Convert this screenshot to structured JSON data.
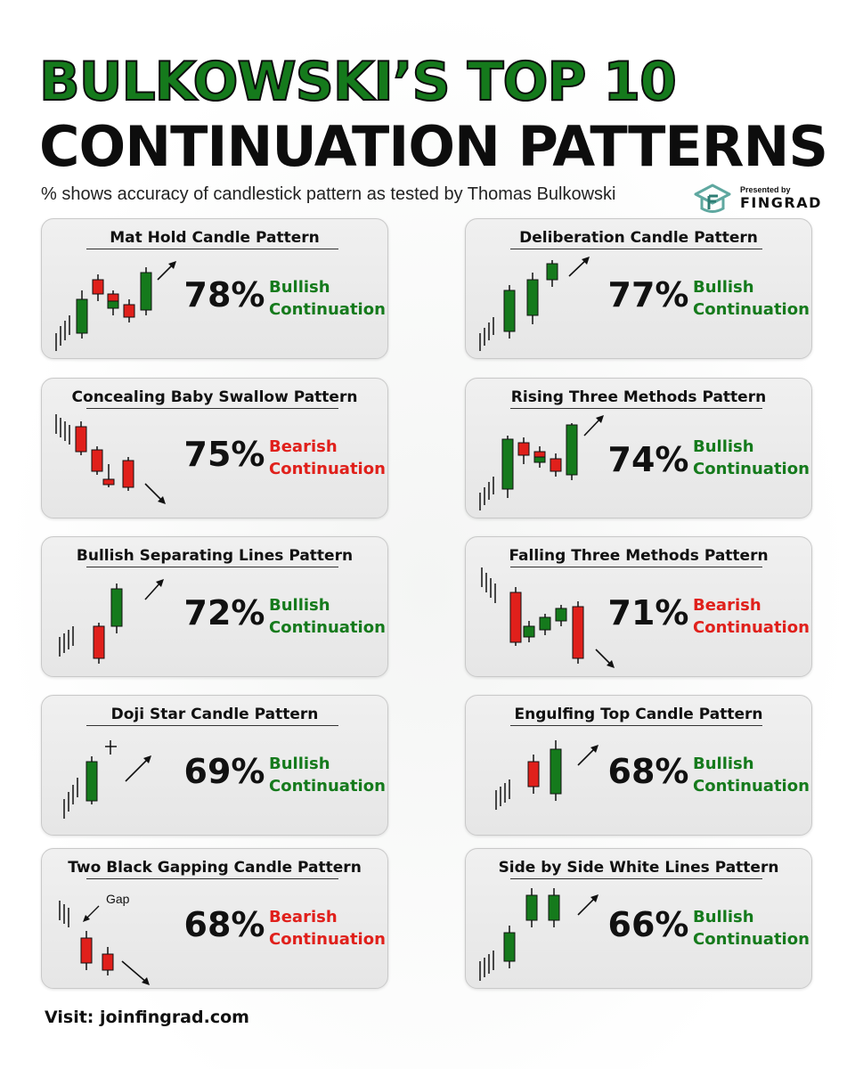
{
  "header": {
    "title_line1": "BULKOWSKI’S TOP 10",
    "title_line2": "CONTINUATION PATTERNS",
    "subtitle": "% shows accuracy of candlestick pattern as tested by Thomas Bulkowski",
    "brand_small": "Presented by",
    "brand_name": "FINGRAD",
    "colors": {
      "green": "#157a1c",
      "red": "#e0201b",
      "dark": "#0d0d0d"
    }
  },
  "cards": [
    {
      "title": "Mat Hold Candle Pattern",
      "percent": "78%",
      "label_line1": "Bullish",
      "label_line2": "Continuation",
      "sentiment": "bullish"
    },
    {
      "title": "Deliberation Candle Pattern",
      "percent": "77%",
      "label_line1": "Bullish",
      "label_line2": "Continuation",
      "sentiment": "bullish"
    },
    {
      "title": "Concealing Baby Swallow Pattern",
      "percent": "75%",
      "label_line1": "Bearish",
      "label_line2": "Continuation",
      "sentiment": "bearish"
    },
    {
      "title": "Rising Three Methods Pattern",
      "percent": "74%",
      "label_line1": "Bullish",
      "label_line2": "Continuation",
      "sentiment": "bullish"
    },
    {
      "title": "Bullish Separating Lines Pattern",
      "percent": "72%",
      "label_line1": "Bullish",
      "label_line2": "Continuation",
      "sentiment": "bullish"
    },
    {
      "title": "Falling Three Methods Pattern",
      "percent": "71%",
      "label_line1": "Bearish",
      "label_line2": "Continuation",
      "sentiment": "bearish"
    },
    {
      "title": "Doji Star Candle Pattern",
      "percent": "69%",
      "label_line1": "Bullish",
      "label_line2": "Continuation",
      "sentiment": "bullish"
    },
    {
      "title": "Engulfing Top Candle Pattern",
      "percent": "68%",
      "label_line1": "Bullish",
      "label_line2": "Continuation",
      "sentiment": "bullish"
    },
    {
      "title": "Two Black Gapping Candle Pattern",
      "percent": "68%",
      "label_line1": "Bearish",
      "label_line2": "Continuation",
      "sentiment": "bearish",
      "annotation": "Gap"
    },
    {
      "title": "Side by Side White Lines Pattern",
      "percent": "66%",
      "label_line1": "Bullish",
      "label_line2": "Continuation",
      "sentiment": "bullish"
    }
  ],
  "footer": {
    "text": "Visit: joinfingrad.com"
  }
}
